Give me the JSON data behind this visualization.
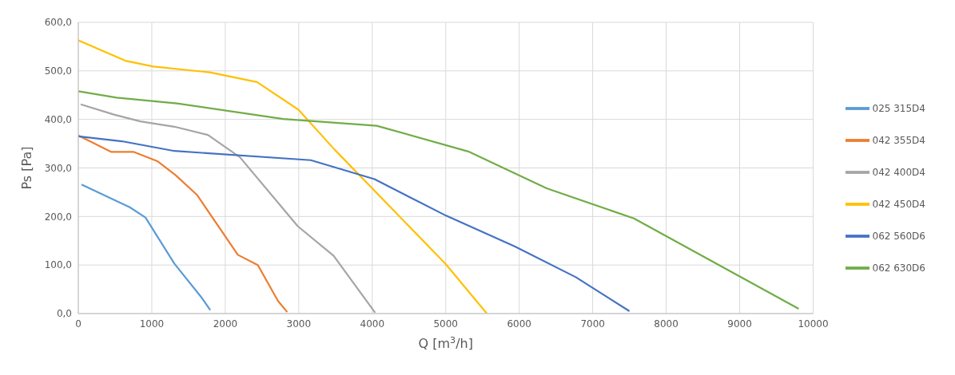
{
  "chart_data": {
    "type": "line",
    "xlabel": "Q [m$^{3}$/h]",
    "ylabel": "Ps [Pa]",
    "xlim": [
      0,
      10000
    ],
    "xticks": [
      0,
      1000,
      2000,
      3000,
      4000,
      5000,
      6000,
      7000,
      8000,
      9000,
      10000
    ],
    "ylim": [
      0,
      600
    ],
    "yticks": [
      {
        "value": 0,
        "label": "0,0"
      },
      {
        "value": 100,
        "label": "100,0"
      },
      {
        "value": 200,
        "label": "200,0"
      },
      {
        "value": 300,
        "label": "300,0"
      },
      {
        "value": 400,
        "label": "400,0"
      },
      {
        "value": 500,
        "label": "500,0"
      },
      {
        "value": 600,
        "label": "600,0"
      }
    ],
    "grid": true,
    "legend": "right",
    "marker": "none",
    "series": [
      {
        "name": "025 315D4",
        "color": "#5b9bd5",
        "x": [
          43,
          700,
          914,
          1307,
          1682,
          1796
        ],
        "values": [
          266,
          219,
          198,
          103,
          32,
          7
        ]
      },
      {
        "name": "042 355D4",
        "color": "#ed7d31",
        "x": [
          0,
          450,
          757,
          1075,
          1325,
          1618,
          2171,
          2443,
          2718,
          2843
        ],
        "values": [
          367,
          333,
          333,
          314,
          285,
          244,
          121,
          100,
          26,
          3
        ]
      },
      {
        "name": "042 400D4",
        "color": "#a5a5a5",
        "x": [
          32,
          486,
          843,
          1307,
          1764,
          2200,
          2986,
          3475,
          4039
        ],
        "values": [
          431,
          410,
          396,
          385,
          368,
          322,
          180,
          119,
          2
        ]
      },
      {
        "name": "042 450D4",
        "color": "#ffc000",
        "x": [
          0,
          639,
          1021,
          1789,
          2432,
          2996,
          3486,
          5000,
          5560
        ],
        "values": [
          563,
          521,
          509,
          497,
          477,
          420,
          338,
          102,
          0
        ]
      },
      {
        "name": "062 560D6",
        "color": "#4472c4",
        "x": [
          0,
          593,
          1307,
          3164,
          4030,
          5000,
          5943,
          6770,
          7500
        ],
        "values": [
          365,
          355,
          335,
          316,
          277,
          202,
          138,
          75,
          5
        ]
      },
      {
        "name": "062 630D6",
        "color": "#70ad47",
        "x": [
          0,
          521,
          1343,
          2789,
          4060,
          5306,
          6373,
          7561,
          9803
        ],
        "values": [
          458,
          445,
          433,
          401,
          387,
          334,
          258,
          196,
          10
        ]
      }
    ]
  }
}
